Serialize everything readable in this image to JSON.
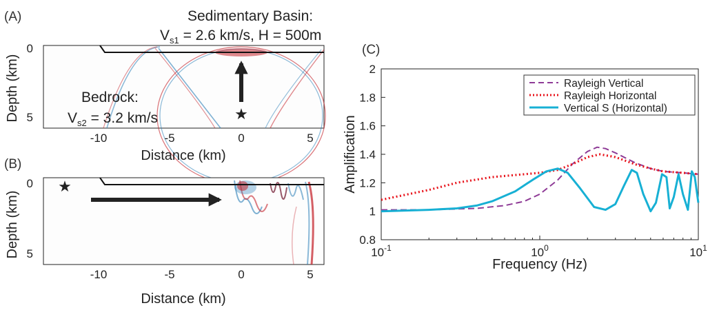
{
  "panels": {
    "a": {
      "label": "(A)",
      "ylabel": "Depth (km)",
      "xlabel": "Distance (km)",
      "xticks": [
        "-10",
        "-5",
        "0",
        "5"
      ],
      "yticks": [
        "0",
        "5"
      ],
      "basin_title": "Sedimentary Basin:",
      "basin_params": {
        "v": "V",
        "sub": "s1",
        "rest": " = 2.6 km/s, H = 500m"
      },
      "bedrock_title": "Bedrock:",
      "bedrock_params": {
        "v": "V",
        "sub": "s2",
        "rest": " = 3.2 km/s"
      },
      "source_symbol": "★"
    },
    "b": {
      "label": "(B)",
      "ylabel": "Depth (km)",
      "xlabel": "Distance (km)",
      "xticks": [
        "-10",
        "-5",
        "0",
        "5"
      ],
      "yticks": [
        "0",
        "5"
      ],
      "source_symbol": "★"
    },
    "c": {
      "label": "(C)"
    }
  },
  "colors": {
    "red": "#b2182b",
    "blue": "#2c7fb8",
    "purple": "#8e3a96",
    "dotted_red": "#e8141c",
    "cyan": "#17b0d4"
  },
  "chart_data": {
    "type": "line",
    "xlabel": "Frequency (Hz)",
    "ylabel": "Amplification",
    "xscale": "log",
    "xlim": [
      0.1,
      10
    ],
    "ylim": [
      0.8,
      2.0
    ],
    "xticks": [
      {
        "value": 0.1,
        "base": "10",
        "exp": "-1"
      },
      {
        "value": 1,
        "base": "10",
        "exp": "0"
      },
      {
        "value": 10,
        "base": "10",
        "exp": "1"
      }
    ],
    "yticks": [
      "0.8",
      "1",
      "1.2",
      "1.4",
      "1.6",
      "1.8",
      "2"
    ],
    "legend_position": "top-right",
    "series": [
      {
        "name": "Rayleigh Vertical",
        "style": "dashed",
        "color": "#8e3a96",
        "x": [
          0.1,
          0.2,
          0.4,
          0.6,
          0.8,
          1.0,
          1.3,
          1.6,
          2.0,
          2.3,
          2.6,
          3.0,
          4.0,
          5.0,
          6.0,
          8.0,
          10.0
        ],
        "y": [
          1.01,
          1.01,
          1.02,
          1.04,
          1.07,
          1.12,
          1.22,
          1.33,
          1.42,
          1.45,
          1.44,
          1.41,
          1.34,
          1.3,
          1.28,
          1.27,
          1.26
        ]
      },
      {
        "name": "Rayleigh Horizontal",
        "style": "dotted",
        "color": "#e8141c",
        "x": [
          0.1,
          0.2,
          0.3,
          0.5,
          0.8,
          1.0,
          1.3,
          1.6,
          2.0,
          2.4,
          3.0,
          4.0,
          5.0,
          6.0,
          8.0,
          10.0
        ],
        "y": [
          1.08,
          1.15,
          1.2,
          1.24,
          1.26,
          1.27,
          1.29,
          1.33,
          1.38,
          1.4,
          1.38,
          1.33,
          1.3,
          1.28,
          1.27,
          1.26
        ]
      },
      {
        "name": "Vertical S (Horizontal)",
        "style": "solid",
        "color": "#17b0d4",
        "x": [
          0.1,
          0.2,
          0.3,
          0.4,
          0.5,
          0.7,
          0.9,
          1.1,
          1.3,
          1.5,
          1.8,
          2.2,
          2.6,
          3.0,
          3.4,
          3.8,
          4.1,
          4.5,
          5.0,
          5.4,
          5.9,
          6.3,
          6.6,
          7.0,
          7.5,
          8.0,
          8.6,
          9.1,
          9.5,
          10.0
        ],
        "y": [
          1.0,
          1.01,
          1.02,
          1.04,
          1.07,
          1.14,
          1.22,
          1.28,
          1.3,
          1.27,
          1.16,
          1.03,
          1.01,
          1.05,
          1.18,
          1.29,
          1.27,
          1.12,
          1.0,
          1.06,
          1.26,
          1.24,
          1.02,
          1.1,
          1.26,
          1.12,
          1.01,
          1.28,
          1.24,
          1.06
        ]
      }
    ]
  }
}
